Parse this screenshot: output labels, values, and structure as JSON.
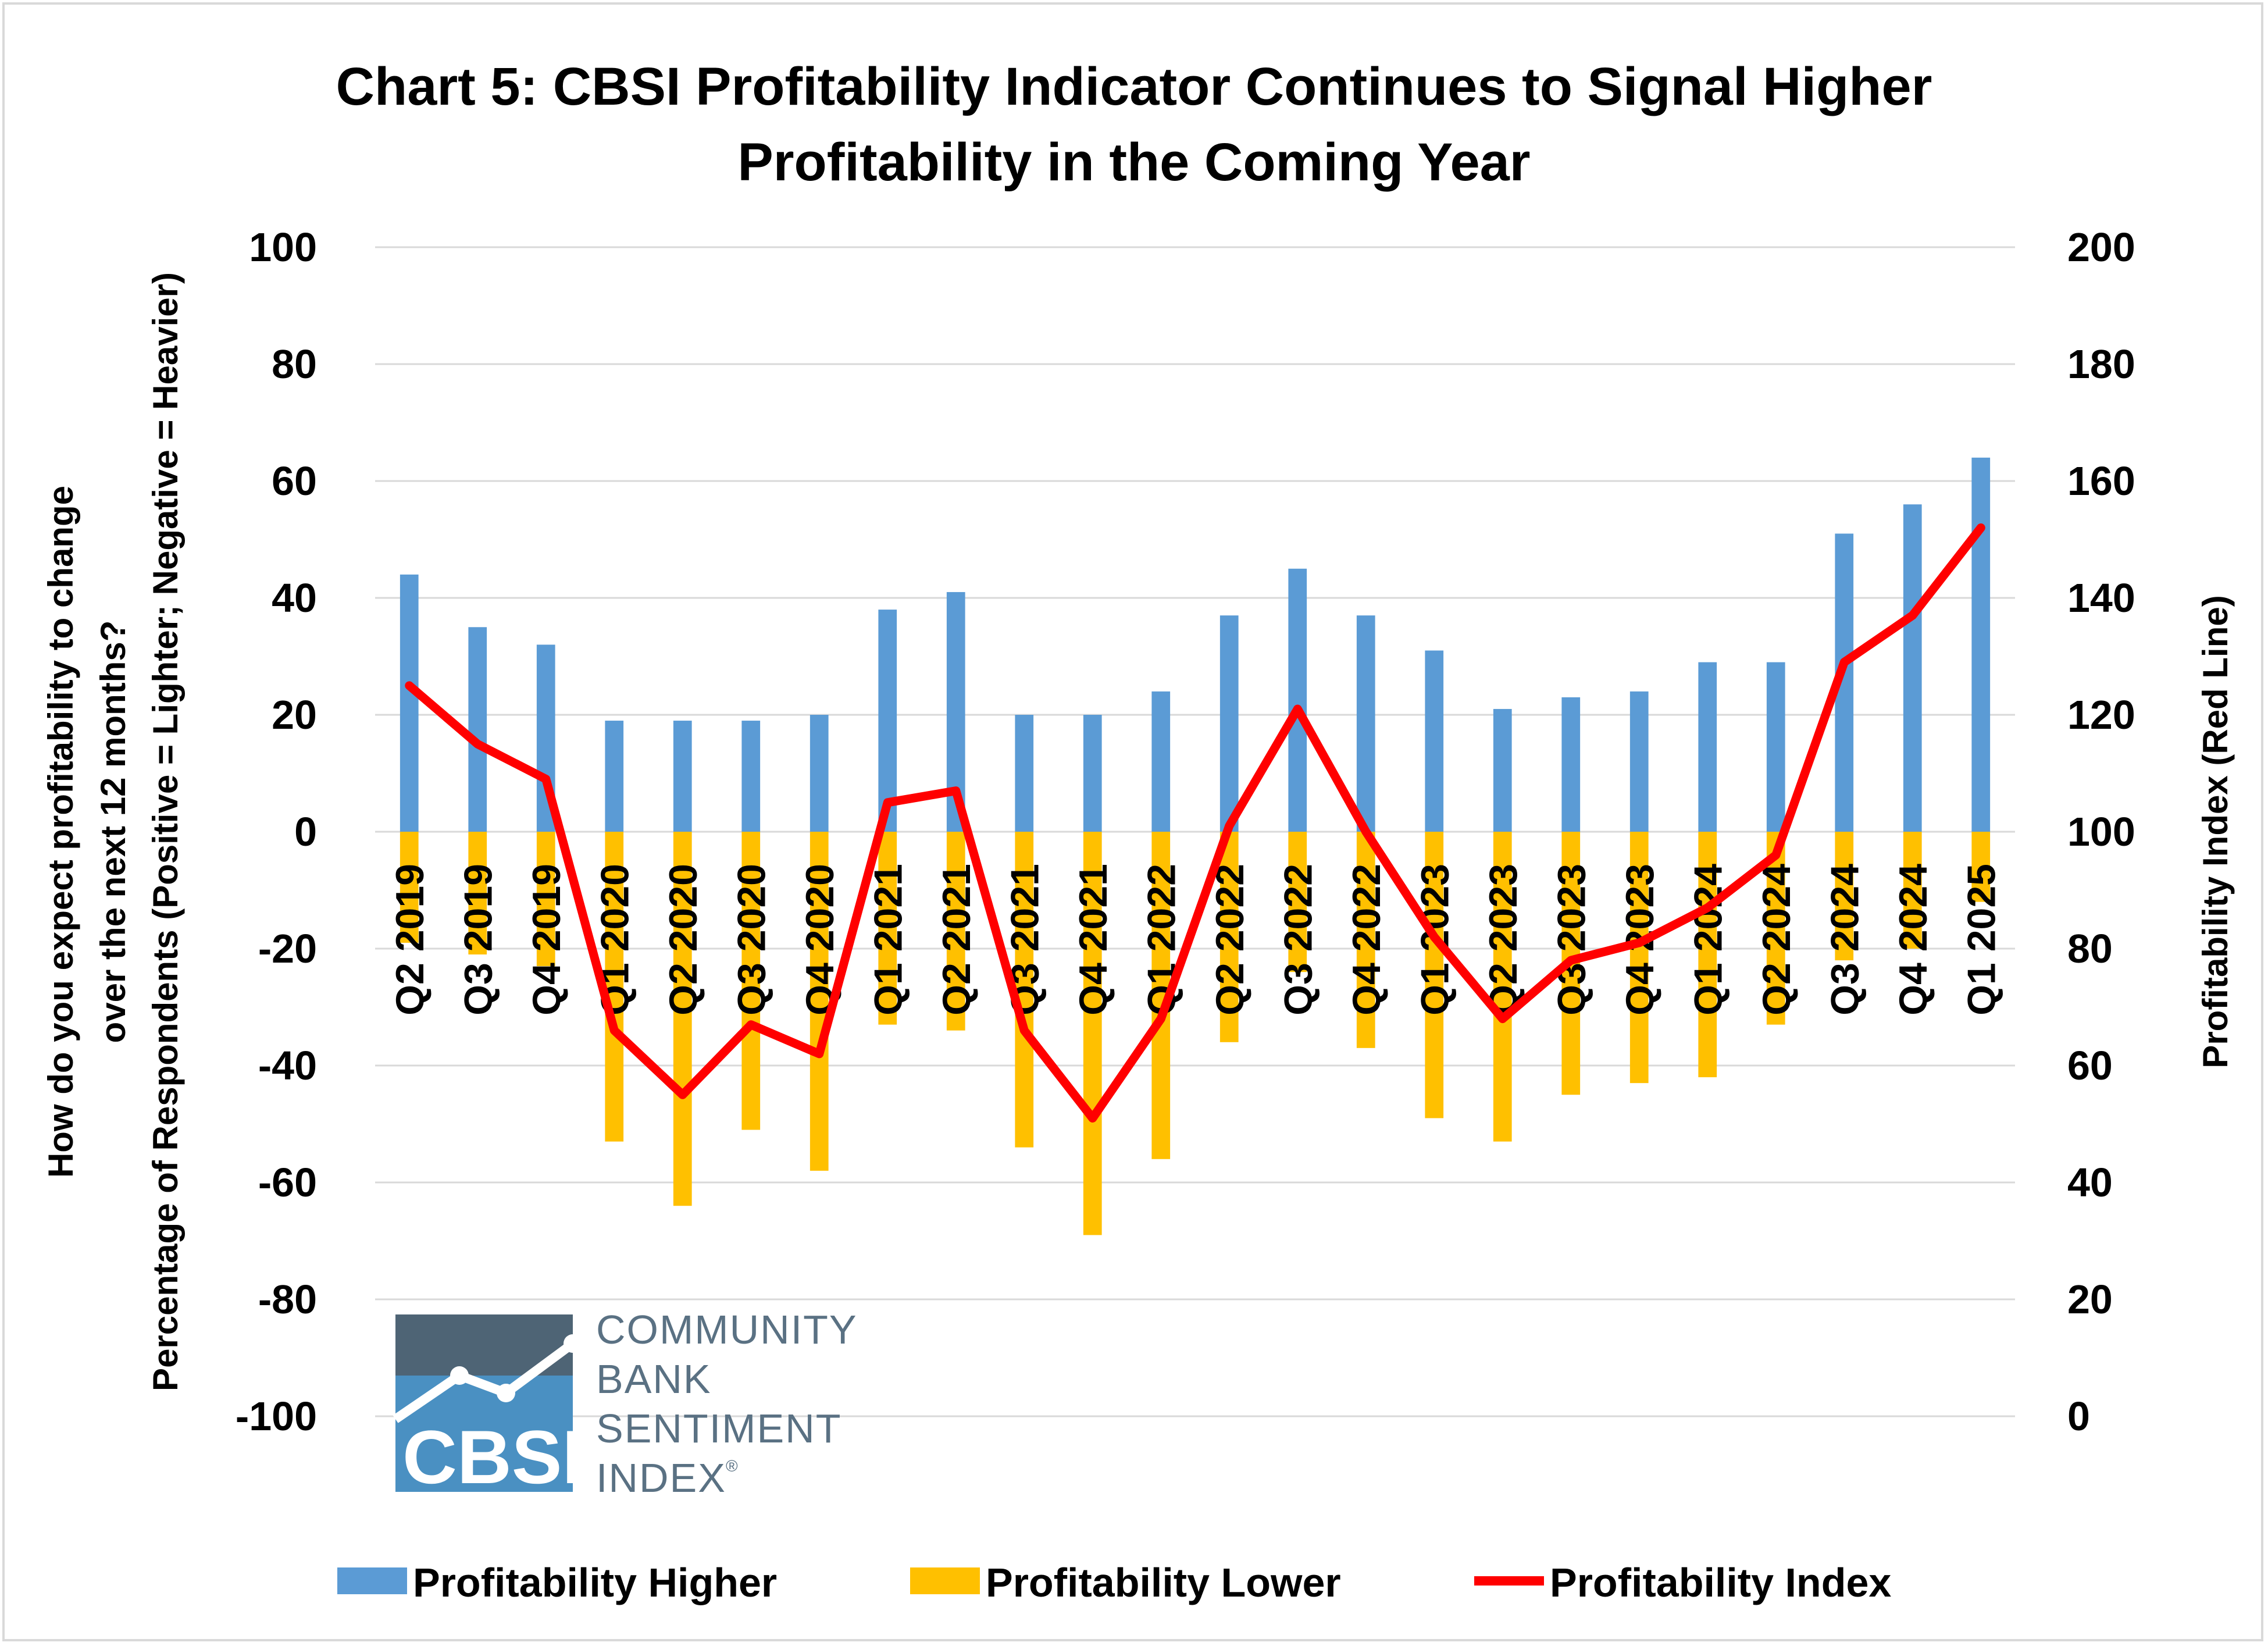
{
  "chart_data": {
    "type": "bar",
    "title_line1": "Chart 5: CBSI Profitability Indicator Continues to Signal Higher",
    "title_line2": "Profitability in the Coming Year",
    "ylabel_line1": "How do you expect profitability to change",
    "ylabel_line2": "over the next 12 months?",
    "ylabel_line3": "Percentage of Respondents (Positive = Lighter; Negative = Heavier)",
    "y2label": "Profitability Index (Red Line)",
    "ylim": [
      -100,
      100
    ],
    "y2lim": [
      0,
      200
    ],
    "yticks": [
      "100",
      "80",
      "60",
      "40",
      "20",
      "0",
      "-20",
      "-40",
      "-60",
      "-80",
      "-100"
    ],
    "y2ticks": [
      "200",
      "180",
      "160",
      "140",
      "120",
      "100",
      "80",
      "60",
      "40",
      "20",
      "0"
    ],
    "grid": true,
    "legend_position": "bottom",
    "categories": [
      "Q2 2019",
      "Q3 2019",
      "Q4 2019",
      "Q1 2020",
      "Q2 2020",
      "Q3 2020",
      "Q4 2020",
      "Q1 2021",
      "Q2 2021",
      "Q3 2021",
      "Q4 2021",
      "Q1 2022",
      "Q2 2022",
      "Q3 2022",
      "Q4 2022",
      "Q1 2023",
      "Q2 2023",
      "Q3 2023",
      "Q4 2023",
      "Q1 2024",
      "Q2 2024",
      "Q3 2024",
      "Q4 2024",
      "Q1 2025"
    ],
    "series": [
      {
        "name": "Profitability Higher",
        "kind": "bar",
        "axis": "left",
        "color": "#5b9bd5",
        "values": [
          44,
          35,
          32,
          19,
          19,
          19,
          20,
          38,
          41,
          20,
          20,
          24,
          37,
          45,
          37,
          31,
          21,
          23,
          24,
          29,
          29,
          51,
          56,
          64
        ]
      },
      {
        "name": "Profitability Lower",
        "kind": "bar",
        "axis": "left",
        "color": "#ffc000",
        "values": [
          -19,
          -21,
          -23,
          -53,
          -64,
          -51,
          -58,
          -33,
          -34,
          -54,
          -69,
          -56,
          -36,
          -24,
          -37,
          -49,
          -53,
          -45,
          -43,
          -42,
          -33,
          -22,
          -20,
          -12
        ]
      },
      {
        "name": "Profitability Index",
        "kind": "line",
        "axis": "right",
        "color": "#ff0000",
        "values": [
          125,
          115,
          109,
          66,
          55,
          67,
          62,
          105,
          107,
          66,
          51,
          68,
          101,
          121,
          100,
          82,
          68,
          78,
          81,
          87,
          96,
          129,
          137,
          152
        ]
      }
    ]
  },
  "logo": {
    "mark_text": "CBSI",
    "line1": "COMMUNITY",
    "line2": "BANK",
    "line3": "SENTIMENT",
    "line4": "INDEX",
    "reg": "®",
    "top_color": "#4e6475",
    "bottom_color": "#4a90c2"
  }
}
